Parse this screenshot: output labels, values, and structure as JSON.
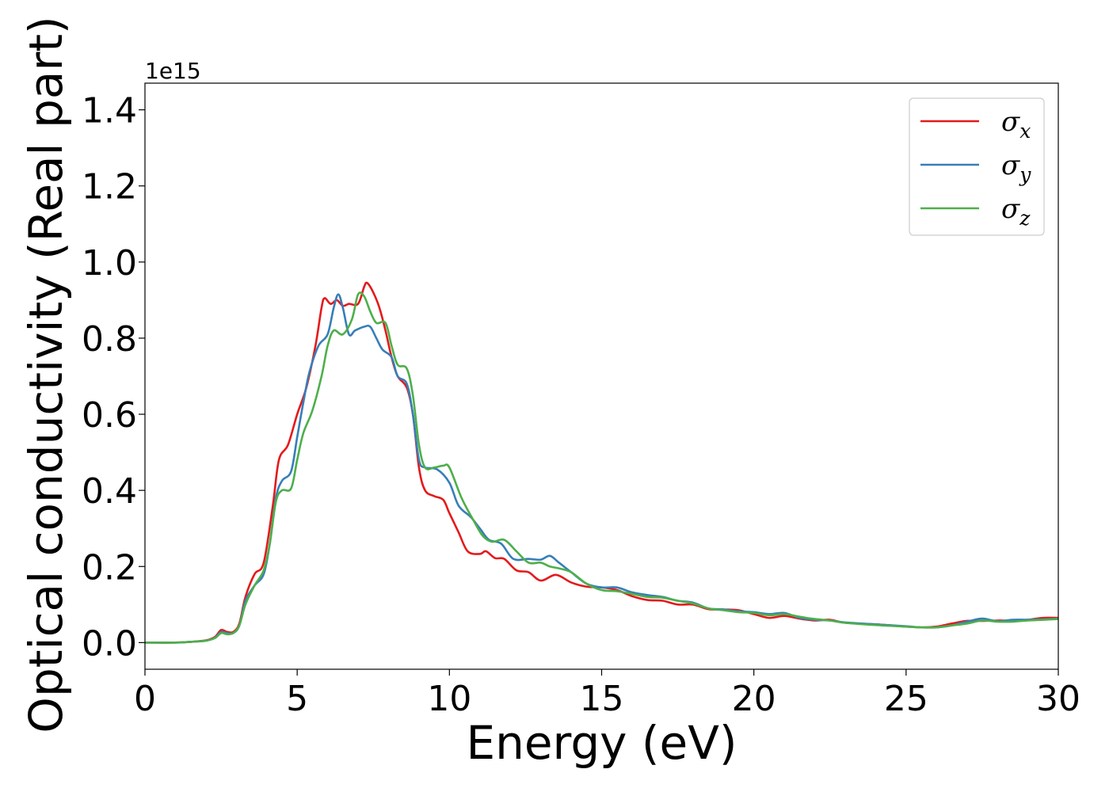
{
  "chart_data": {
    "type": "line",
    "xlabel": "Energy (eV)",
    "ylabel": "Optical conductivity (Real part)",
    "y_offset_label": "1e15",
    "y_scale": 1000000000000000.0,
    "xlim": [
      0,
      30
    ],
    "ylim": [
      -0.07,
      1.47
    ],
    "x_ticks": [
      0,
      5,
      10,
      15,
      20,
      25,
      30
    ],
    "x_tick_labels": [
      "0",
      "5",
      "10",
      "15",
      "20",
      "25",
      "30"
    ],
    "y_ticks": [
      0.0,
      0.2,
      0.4,
      0.6,
      0.8,
      1.0,
      1.2,
      1.4
    ],
    "y_tick_labels": [
      "0.0",
      "0.2",
      "0.4",
      "0.6",
      "0.8",
      "1.0",
      "1.2",
      "1.4"
    ],
    "grid": false,
    "legend_position": "top-right",
    "series": [
      {
        "name": "σx",
        "legend_main": "σ",
        "legend_sub": "x",
        "color": "#e41a1c",
        "points": [
          [
            0,
            0
          ],
          [
            1,
            0
          ],
          [
            1.5,
            0.002
          ],
          [
            2,
            0.006
          ],
          [
            2.3,
            0.015
          ],
          [
            2.5,
            0.033
          ],
          [
            2.7,
            0.028
          ],
          [
            2.9,
            0.028
          ],
          [
            3.1,
            0.05
          ],
          [
            3.3,
            0.12
          ],
          [
            3.6,
            0.18
          ],
          [
            3.9,
            0.21
          ],
          [
            4.2,
            0.36
          ],
          [
            4.4,
            0.48
          ],
          [
            4.7,
            0.52
          ],
          [
            5,
            0.6
          ],
          [
            5.3,
            0.67
          ],
          [
            5.6,
            0.78
          ],
          [
            5.8,
            0.88
          ],
          [
            5.9,
            0.905
          ],
          [
            6.1,
            0.89
          ],
          [
            6.3,
            0.9
          ],
          [
            6.5,
            0.885
          ],
          [
            6.7,
            0.89
          ],
          [
            7,
            0.89
          ],
          [
            7.2,
            0.935
          ],
          [
            7.3,
            0.945
          ],
          [
            7.5,
            0.92
          ],
          [
            7.7,
            0.88
          ],
          [
            7.9,
            0.82
          ],
          [
            8.1,
            0.75
          ],
          [
            8.3,
            0.7
          ],
          [
            8.6,
            0.67
          ],
          [
            8.8,
            0.6
          ],
          [
            9,
            0.46
          ],
          [
            9.2,
            0.4
          ],
          [
            9.5,
            0.385
          ],
          [
            9.8,
            0.375
          ],
          [
            10,
            0.34
          ],
          [
            10.3,
            0.29
          ],
          [
            10.6,
            0.24
          ],
          [
            11,
            0.233
          ],
          [
            11.2,
            0.24
          ],
          [
            11.5,
            0.222
          ],
          [
            11.8,
            0.22
          ],
          [
            12.2,
            0.19
          ],
          [
            12.6,
            0.185
          ],
          [
            13,
            0.163
          ],
          [
            13.5,
            0.178
          ],
          [
            14,
            0.158
          ],
          [
            14.5,
            0.147
          ],
          [
            15,
            0.145
          ],
          [
            15.5,
            0.138
          ],
          [
            16,
            0.122
          ],
          [
            16.5,
            0.112
          ],
          [
            17,
            0.11
          ],
          [
            17.5,
            0.1
          ],
          [
            18,
            0.1
          ],
          [
            18.5,
            0.088
          ],
          [
            19,
            0.087
          ],
          [
            19.5,
            0.085
          ],
          [
            20,
            0.075
          ],
          [
            20.5,
            0.065
          ],
          [
            21,
            0.07
          ],
          [
            21.5,
            0.063
          ],
          [
            22,
            0.058
          ],
          [
            22.5,
            0.06
          ],
          [
            23,
            0.052
          ],
          [
            24,
            0.048
          ],
          [
            25,
            0.042
          ],
          [
            25.5,
            0.04
          ],
          [
            26,
            0.042
          ],
          [
            26.5,
            0.05
          ],
          [
            27,
            0.057
          ],
          [
            27.5,
            0.057
          ],
          [
            28,
            0.058
          ],
          [
            28.5,
            0.058
          ],
          [
            29,
            0.06
          ],
          [
            29.5,
            0.065
          ],
          [
            30,
            0.065
          ]
        ]
      },
      {
        "name": "σy",
        "legend_main": "σ",
        "legend_sub": "y",
        "color": "#377eb8",
        "points": [
          [
            0,
            0
          ],
          [
            1,
            0
          ],
          [
            1.5,
            0.002
          ],
          [
            2,
            0.005
          ],
          [
            2.3,
            0.013
          ],
          [
            2.5,
            0.028
          ],
          [
            2.7,
            0.025
          ],
          [
            2.9,
            0.025
          ],
          [
            3.1,
            0.045
          ],
          [
            3.3,
            0.11
          ],
          [
            3.6,
            0.15
          ],
          [
            3.9,
            0.18
          ],
          [
            4.1,
            0.26
          ],
          [
            4.3,
            0.38
          ],
          [
            4.5,
            0.425
          ],
          [
            4.8,
            0.45
          ],
          [
            5,
            0.54
          ],
          [
            5.2,
            0.63
          ],
          [
            5.4,
            0.71
          ],
          [
            5.7,
            0.78
          ],
          [
            6,
            0.81
          ],
          [
            6.2,
            0.88
          ],
          [
            6.35,
            0.915
          ],
          [
            6.5,
            0.88
          ],
          [
            6.7,
            0.81
          ],
          [
            6.9,
            0.82
          ],
          [
            7.2,
            0.83
          ],
          [
            7.4,
            0.83
          ],
          [
            7.6,
            0.8
          ],
          [
            7.8,
            0.77
          ],
          [
            8.1,
            0.75
          ],
          [
            8.3,
            0.7
          ],
          [
            8.6,
            0.68
          ],
          [
            8.8,
            0.6
          ],
          [
            9,
            0.48
          ],
          [
            9.2,
            0.46
          ],
          [
            9.6,
            0.455
          ],
          [
            10,
            0.42
          ],
          [
            10.3,
            0.36
          ],
          [
            10.7,
            0.33
          ],
          [
            11,
            0.3
          ],
          [
            11.3,
            0.27
          ],
          [
            11.7,
            0.26
          ],
          [
            12.1,
            0.22
          ],
          [
            12.6,
            0.22
          ],
          [
            13,
            0.218
          ],
          [
            13.3,
            0.228
          ],
          [
            13.6,
            0.21
          ],
          [
            14,
            0.185
          ],
          [
            14.5,
            0.155
          ],
          [
            15,
            0.145
          ],
          [
            15.5,
            0.145
          ],
          [
            16,
            0.132
          ],
          [
            16.5,
            0.125
          ],
          [
            17,
            0.12
          ],
          [
            17.5,
            0.11
          ],
          [
            18,
            0.105
          ],
          [
            18.5,
            0.09
          ],
          [
            19,
            0.087
          ],
          [
            19.5,
            0.082
          ],
          [
            20,
            0.08
          ],
          [
            20.5,
            0.075
          ],
          [
            21,
            0.078
          ],
          [
            21.5,
            0.065
          ],
          [
            22,
            0.06
          ],
          [
            22.5,
            0.058
          ],
          [
            23,
            0.053
          ],
          [
            24,
            0.048
          ],
          [
            25,
            0.043
          ],
          [
            25.5,
            0.04
          ],
          [
            26,
            0.04
          ],
          [
            26.5,
            0.045
          ],
          [
            27,
            0.055
          ],
          [
            27.5,
            0.063
          ],
          [
            28,
            0.056
          ],
          [
            28.5,
            0.06
          ],
          [
            29,
            0.06
          ],
          [
            29.5,
            0.061
          ],
          [
            30,
            0.063
          ]
        ]
      },
      {
        "name": "σz",
        "legend_main": "σ",
        "legend_sub": "z",
        "color": "#4daf4a",
        "points": [
          [
            0,
            0
          ],
          [
            1,
            0
          ],
          [
            1.5,
            0.002
          ],
          [
            2,
            0.005
          ],
          [
            2.3,
            0.012
          ],
          [
            2.5,
            0.025
          ],
          [
            2.7,
            0.022
          ],
          [
            2.9,
            0.025
          ],
          [
            3.1,
            0.045
          ],
          [
            3.3,
            0.1
          ],
          [
            3.6,
            0.15
          ],
          [
            3.9,
            0.19
          ],
          [
            4.1,
            0.26
          ],
          [
            4.3,
            0.37
          ],
          [
            4.5,
            0.4
          ],
          [
            4.8,
            0.405
          ],
          [
            5,
            0.48
          ],
          [
            5.2,
            0.55
          ],
          [
            5.5,
            0.61
          ],
          [
            5.8,
            0.7
          ],
          [
            6,
            0.78
          ],
          [
            6.2,
            0.82
          ],
          [
            6.5,
            0.81
          ],
          [
            6.8,
            0.85
          ],
          [
            7,
            0.915
          ],
          [
            7.2,
            0.91
          ],
          [
            7.4,
            0.87
          ],
          [
            7.6,
            0.84
          ],
          [
            7.9,
            0.84
          ],
          [
            8.1,
            0.78
          ],
          [
            8.3,
            0.73
          ],
          [
            8.6,
            0.72
          ],
          [
            8.8,
            0.65
          ],
          [
            9,
            0.52
          ],
          [
            9.2,
            0.46
          ],
          [
            9.5,
            0.46
          ],
          [
            9.8,
            0.465
          ],
          [
            10,
            0.46
          ],
          [
            10.4,
            0.38
          ],
          [
            10.8,
            0.32
          ],
          [
            11.1,
            0.28
          ],
          [
            11.4,
            0.265
          ],
          [
            11.8,
            0.27
          ],
          [
            12.2,
            0.24
          ],
          [
            12.6,
            0.21
          ],
          [
            13,
            0.21
          ],
          [
            13.3,
            0.2
          ],
          [
            13.6,
            0.195
          ],
          [
            14,
            0.185
          ],
          [
            14.5,
            0.155
          ],
          [
            15,
            0.138
          ],
          [
            15.5,
            0.135
          ],
          [
            16,
            0.128
          ],
          [
            16.5,
            0.12
          ],
          [
            17,
            0.118
          ],
          [
            17.5,
            0.11
          ],
          [
            18,
            0.103
          ],
          [
            18.5,
            0.09
          ],
          [
            19,
            0.085
          ],
          [
            19.5,
            0.08
          ],
          [
            20,
            0.078
          ],
          [
            20.5,
            0.072
          ],
          [
            21,
            0.075
          ],
          [
            21.5,
            0.068
          ],
          [
            22,
            0.062
          ],
          [
            22.5,
            0.058
          ],
          [
            23,
            0.052
          ],
          [
            24,
            0.046
          ],
          [
            25,
            0.042
          ],
          [
            25.5,
            0.04
          ],
          [
            26,
            0.04
          ],
          [
            26.5,
            0.045
          ],
          [
            27,
            0.05
          ],
          [
            27.5,
            0.058
          ],
          [
            28,
            0.055
          ],
          [
            28.5,
            0.055
          ],
          [
            29,
            0.058
          ],
          [
            29.5,
            0.06
          ],
          [
            30,
            0.062
          ]
        ]
      }
    ]
  }
}
